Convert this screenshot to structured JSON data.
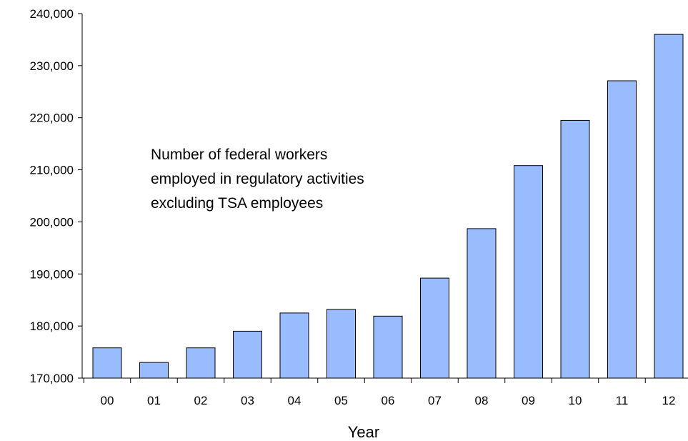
{
  "chart_data": {
    "type": "bar",
    "title": "",
    "xlabel": "Year",
    "ylabel": "",
    "categories": [
      "00",
      "01",
      "02",
      "03",
      "04",
      "05",
      "06",
      "07",
      "08",
      "09",
      "10",
      "11",
      "12"
    ],
    "values": [
      175800,
      173000,
      175800,
      179000,
      182500,
      183200,
      181900,
      189200,
      198700,
      210800,
      219500,
      227100,
      236000
    ],
    "ylim": [
      170000,
      240000
    ],
    "yticks": [
      170000,
      180000,
      190000,
      200000,
      210000,
      220000,
      230000,
      240000
    ],
    "ytick_labels": [
      "170,000",
      "180,000",
      "190,000",
      "200,000",
      "210,000",
      "220,000",
      "230,000",
      "240,000"
    ],
    "annotation": [
      "Number of federal workers",
      "employed in regulatory activities",
      "excluding TSA employees"
    ],
    "grid": false,
    "legend": "none",
    "bar_color": "#99bbff"
  }
}
